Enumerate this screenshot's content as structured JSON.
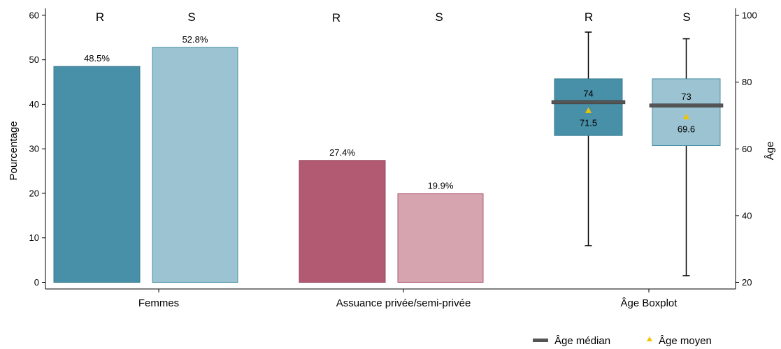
{
  "chart_data": {
    "type": "bar",
    "left_axis": {
      "label": "Pourcentage",
      "range": [
        0,
        60
      ],
      "ticks": [
        0,
        10,
        20,
        30,
        40,
        50,
        60
      ]
    },
    "right_axis": {
      "label": "Âge",
      "range": [
        20,
        100
      ],
      "ticks": [
        20,
        40,
        60,
        80,
        100
      ]
    },
    "categories": [
      "Femmes",
      "Assuance privée/semi-privée",
      "Âge Boxplot"
    ],
    "bars": [
      {
        "category": "Femmes",
        "group": "R",
        "value": 48.5,
        "label": "48.5%",
        "fill": "#4790A8",
        "stroke": "#3A7B91"
      },
      {
        "category": "Femmes",
        "group": "S",
        "value": 52.8,
        "label": "52.8%",
        "fill": "#9CC3D2",
        "stroke": "#4A8FA6"
      },
      {
        "category": "Assuance privée/semi-privée",
        "group": "R",
        "value": 27.4,
        "label": "27.4%",
        "fill": "#B15A72",
        "stroke": "#974560"
      },
      {
        "category": "Assuance privée/semi-privée",
        "group": "S",
        "value": 19.9,
        "label": "19.9%",
        "fill": "#D5A4AF",
        "stroke": "#B15A72"
      }
    ],
    "boxplots": [
      {
        "category": "Âge Boxplot",
        "group": "R",
        "whisker_low": 31,
        "q1": 64,
        "median": 74,
        "q3": 81,
        "whisker_high": 95,
        "mean": 71.5,
        "median_label": "74",
        "mean_label": "71.5",
        "fill": "#4790A8",
        "stroke": "#3A7B91"
      },
      {
        "category": "Âge Boxplot",
        "group": "S",
        "whisker_low": 22,
        "q1": 61,
        "median": 73,
        "q3": 81,
        "whisker_high": 93,
        "mean": 69.6,
        "median_label": "73",
        "mean_label": "69.6",
        "fill": "#9CC3D2",
        "stroke": "#4A8FA6"
      }
    ],
    "group_labels": [
      "R",
      "S",
      "R",
      "S",
      "R",
      "S"
    ],
    "legend": {
      "placement": "bottom-right",
      "items": [
        {
          "symbol": "median-line",
          "label": "Âge médian",
          "color": "#555555"
        },
        {
          "symbol": "mean-triangle",
          "label": "Âge moyen",
          "color": "#F2C300"
        }
      ]
    },
    "grid": false
  }
}
